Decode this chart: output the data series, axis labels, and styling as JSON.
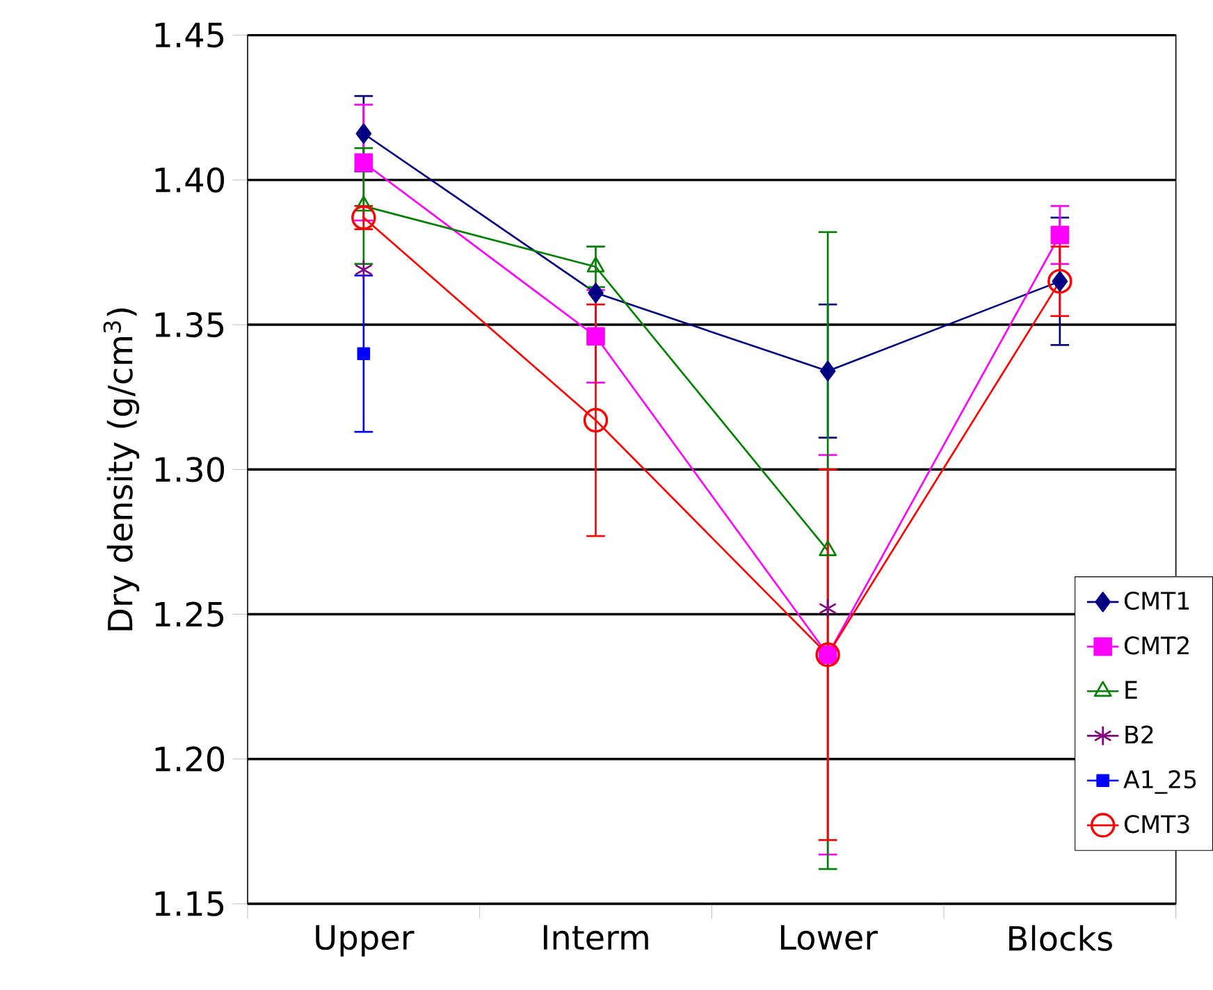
{
  "chart_data": {
    "type": "line",
    "ylabel": "Dry density (g/cm$^{3}$)",
    "categories": [
      "Upper",
      "Interm",
      "Lower",
      "Blocks"
    ],
    "series": [
      {
        "name": "CMT1",
        "color": "#000080",
        "marker": "diamond",
        "values": [
          1.416,
          1.361,
          1.334,
          1.365
        ],
        "errors": [
          0.013,
          null,
          0.023,
          0.022
        ]
      },
      {
        "name": "CMT2",
        "color": "#ff00ff",
        "marker": "square",
        "values": [
          1.406,
          1.346,
          1.236,
          1.381
        ],
        "errors": [
          0.02,
          0.016,
          0.069,
          0.01
        ]
      },
      {
        "name": "E",
        "color": "#008000",
        "marker": "triangle",
        "values": [
          1.391,
          1.37,
          1.272,
          null
        ],
        "errors": [
          0.02,
          0.007,
          0.11,
          null
        ]
      },
      {
        "name": "B2",
        "color": "#800080",
        "marker": "cross",
        "values": [
          1.369,
          null,
          1.252,
          null
        ]
      },
      {
        "name": "A1_25",
        "color": "#0000ff",
        "marker": "square",
        "line_style": "none",
        "values": [
          1.34,
          null,
          null,
          null
        ],
        "errors": [
          0.027,
          null,
          null,
          null
        ]
      },
      {
        "name": "CMT3",
        "color": "#ff0000",
        "marker": "circle",
        "values": [
          1.387,
          1.317,
          1.236,
          1.365
        ],
        "errors": [
          0.004,
          0.04,
          0.064,
          0.012
        ]
      }
    ],
    "ylim": [
      1.15,
      1.45
    ],
    "yticks": [
      {
        "value": 1.15,
        "label": "1.15"
      },
      {
        "value": 1.2,
        "label": "1.20"
      },
      {
        "value": 1.25,
        "label": "1.25"
      },
      {
        "value": 1.3,
        "label": "1.30"
      },
      {
        "value": 1.35,
        "label": "1.35"
      },
      {
        "value": 1.4,
        "label": "1.40"
      },
      {
        "value": 1.45,
        "label": "1.45"
      }
    ],
    "grid": "y",
    "legend": "right"
  }
}
